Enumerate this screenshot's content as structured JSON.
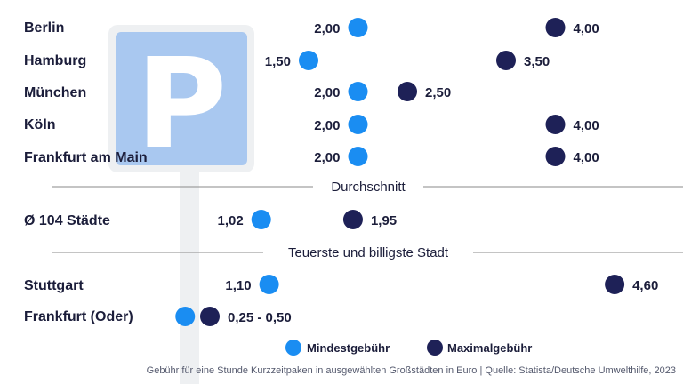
{
  "chart_data": {
    "type": "dumbbell",
    "unit": "Euro",
    "colors": {
      "min": "#1a8df2",
      "max": "#1e2157",
      "divider": "#8a8a8a",
      "text": "#1b1d3a",
      "sign": "#a9c8f0"
    },
    "groups": [
      {
        "heading": "",
        "rows": [
          {
            "city": "Berlin",
            "min": 2.0,
            "max": 4.0,
            "min_label": "2,00",
            "max_label": "4,00"
          },
          {
            "city": "Hamburg",
            "min": 1.5,
            "max": 3.5,
            "min_label": "1,50",
            "max_label": "3,50"
          },
          {
            "city": "München",
            "min": 2.0,
            "max": 2.5,
            "min_label": "2,00",
            "max_label": "2,50"
          },
          {
            "city": "Köln",
            "min": 2.0,
            "max": 4.0,
            "min_label": "2,00",
            "max_label": "4,00"
          },
          {
            "city": "Frankfurt am Main",
            "min": 2.0,
            "max": 4.0,
            "min_label": "2,00",
            "max_label": "4,00"
          }
        ]
      },
      {
        "heading": "Durchschnitt",
        "rows": [
          {
            "city": "Ø 104 Städte",
            "min": 1.02,
            "max": 1.95,
            "min_label": "1,02",
            "max_label": "1,95"
          }
        ]
      },
      {
        "heading": "Teuerste und billigste Stadt",
        "rows": [
          {
            "city": "Stuttgart",
            "min": 1.1,
            "max": 4.6,
            "min_label": "1,10",
            "max_label": "4,60"
          },
          {
            "city": "Frankfurt (Oder)",
            "min": 0.25,
            "max": 0.5,
            "range_label": "0,25 - 0,50"
          }
        ]
      }
    ],
    "legend": [
      {
        "name": "Mindestgebühr",
        "key": "min"
      },
      {
        "name": "Maximalgebühr",
        "key": "max"
      }
    ],
    "sign_letter": "P",
    "source": "Gebühr für eine Stunde Kurzzeitpaken in ausgewählten Großstädten in Euro | Quelle: Statista/Deutsche Umwelthilfe, 2023"
  }
}
